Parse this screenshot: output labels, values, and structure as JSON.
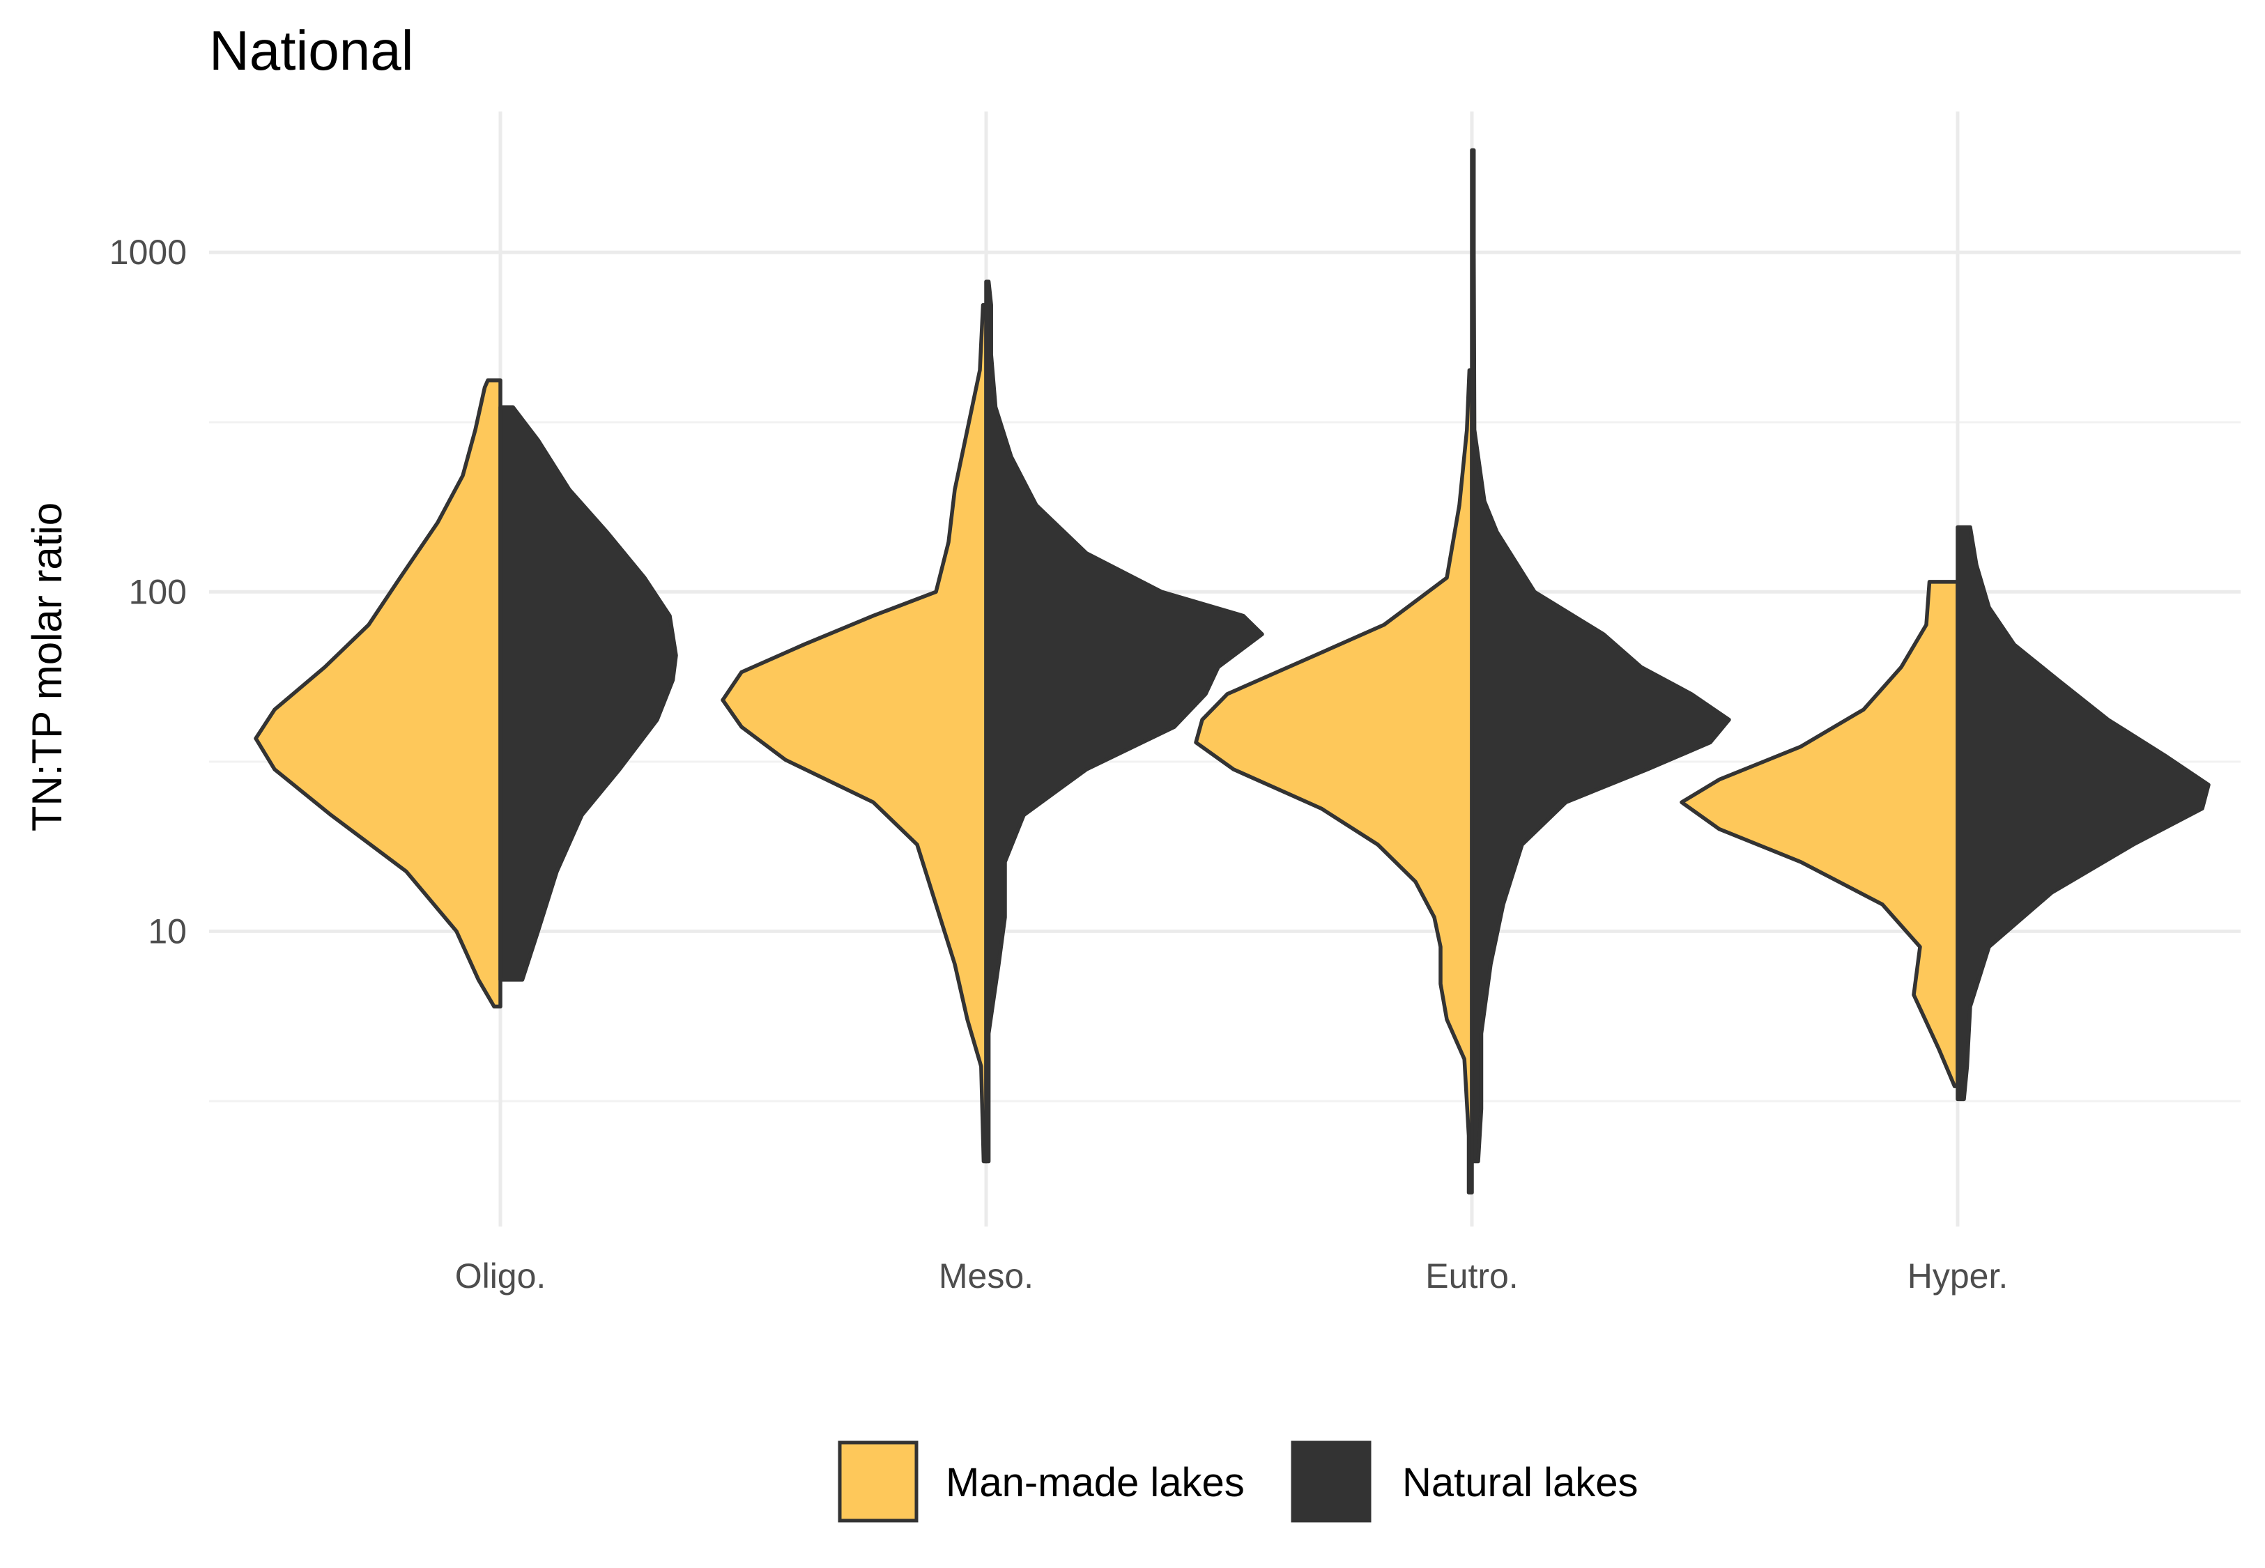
{
  "chart_data": {
    "type": "split-violin",
    "title": "National",
    "ylabel": "TN:TP molar ratio",
    "xlabel": "",
    "y_scale": "log10",
    "ylim": [
      1.35,
      2600
    ],
    "y_ticks": [
      10,
      100,
      1000
    ],
    "y_tick_labels": [
      "10",
      "100",
      "1000"
    ],
    "y_minor_ticks": [
      3.16,
      31.6,
      316
    ],
    "categories": [
      "Oligo.",
      "Meso.",
      "Eutro.",
      "Hyper."
    ],
    "grid": true,
    "legend_position": "bottom",
    "colors": {
      "man_made": "#FEC85A",
      "natural": "#333333",
      "outline": "#333333"
    },
    "series": [
      {
        "name": "Man-made lakes",
        "side": "left",
        "color": "#FEC85A",
        "violins": [
          {
            "category": "Oligo.",
            "ymin": 6.0,
            "ymax": 420,
            "profile": [
              [
                6.0,
                0.01
              ],
              [
                7.2,
                0.035
              ],
              [
                10,
                0.07
              ],
              [
                15,
                0.15
              ],
              [
                22,
                0.27
              ],
              [
                30,
                0.36
              ],
              [
                37,
                0.39
              ],
              [
                45,
                0.36
              ],
              [
                60,
                0.28
              ],
              [
                80,
                0.21
              ],
              [
                110,
                0.16
              ],
              [
                160,
                0.1
              ],
              [
                220,
                0.06
              ],
              [
                300,
                0.04
              ],
              [
                400,
                0.025
              ],
              [
                420,
                0.02
              ]
            ]
          },
          {
            "category": "Meso.",
            "ymin": 2.1,
            "ymax": 700,
            "profile": [
              [
                2.1,
                0.004
              ],
              [
                4,
                0.008
              ],
              [
                5.5,
                0.03
              ],
              [
                8,
                0.05
              ],
              [
                12,
                0.08
              ],
              [
                18,
                0.11
              ],
              [
                24,
                0.18
              ],
              [
                32,
                0.32
              ],
              [
                40,
                0.39
              ],
              [
                48,
                0.42
              ],
              [
                58,
                0.39
              ],
              [
                70,
                0.29
              ],
              [
                85,
                0.18
              ],
              [
                100,
                0.08
              ],
              [
                140,
                0.06
              ],
              [
                200,
                0.05
              ],
              [
                300,
                0.03
              ],
              [
                450,
                0.01
              ],
              [
                700,
                0.005
              ]
            ]
          },
          {
            "category": "Eutro.",
            "ymin": 1.7,
            "ymax": 450,
            "profile": [
              [
                1.7,
                0.005
              ],
              [
                2.5,
                0.005
              ],
              [
                4.2,
                0.012
              ],
              [
                5.5,
                0.04
              ],
              [
                7,
                0.05
              ],
              [
                9,
                0.05
              ],
              [
                11,
                0.06
              ],
              [
                14,
                0.09
              ],
              [
                18,
                0.15
              ],
              [
                23,
                0.24
              ],
              [
                30,
                0.38
              ],
              [
                36,
                0.44
              ],
              [
                42,
                0.43
              ],
              [
                50,
                0.39
              ],
              [
                65,
                0.25
              ],
              [
                80,
                0.14
              ],
              [
                110,
                0.04
              ],
              [
                180,
                0.02
              ],
              [
                300,
                0.008
              ],
              [
                450,
                0.004
              ]
            ]
          },
          {
            "category": "Hyper.",
            "ymin": 3.5,
            "ymax": 107,
            "profile": [
              [
                3.5,
                0.005
              ],
              [
                4.5,
                0.03
              ],
              [
                6.5,
                0.07
              ],
              [
                9,
                0.06
              ],
              [
                12,
                0.12
              ],
              [
                16,
                0.25
              ],
              [
                20,
                0.38
              ],
              [
                24,
                0.44
              ],
              [
                28,
                0.38
              ],
              [
                35,
                0.25
              ],
              [
                45,
                0.15
              ],
              [
                60,
                0.09
              ],
              [
                80,
                0.05
              ],
              [
                107,
                0.045
              ]
            ]
          }
        ]
      },
      {
        "name": "Natural lakes",
        "side": "right",
        "color": "#333333",
        "violins": [
          {
            "category": "Oligo.",
            "ymin": 7.2,
            "ymax": 350,
            "profile": [
              [
                7.2,
                0.035
              ],
              [
                10,
                0.06
              ],
              [
                15,
                0.09
              ],
              [
                22,
                0.13
              ],
              [
                30,
                0.19
              ],
              [
                42,
                0.25
              ],
              [
                55,
                0.275
              ],
              [
                65,
                0.28
              ],
              [
                85,
                0.27
              ],
              [
                110,
                0.23
              ],
              [
                150,
                0.17
              ],
              [
                200,
                0.11
              ],
              [
                280,
                0.06
              ],
              [
                350,
                0.02
              ]
            ]
          },
          {
            "category": "Meso.",
            "ymin": 2.1,
            "ymax": 820,
            "profile": [
              [
                2.1,
                0.004
              ],
              [
                5,
                0.004
              ],
              [
                8,
                0.02
              ],
              [
                11,
                0.03
              ],
              [
                16,
                0.03
              ],
              [
                22,
                0.06
              ],
              [
                30,
                0.16
              ],
              [
                40,
                0.3
              ],
              [
                50,
                0.35
              ],
              [
                60,
                0.37
              ],
              [
                75,
                0.44
              ],
              [
                85,
                0.41
              ],
              [
                100,
                0.28
              ],
              [
                130,
                0.16
              ],
              [
                180,
                0.08
              ],
              [
                250,
                0.04
              ],
              [
                350,
                0.015
              ],
              [
                500,
                0.008
              ],
              [
                700,
                0.008
              ],
              [
                820,
                0.004
              ]
            ]
          },
          {
            "category": "Eutro.",
            "ymin": 2.1,
            "ymax": 2000,
            "profile": [
              [
                2.1,
                0.01
              ],
              [
                3,
                0.015
              ],
              [
                5,
                0.015
              ],
              [
                8,
                0.03
              ],
              [
                12,
                0.05
              ],
              [
                18,
                0.08
              ],
              [
                24,
                0.15
              ],
              [
                30,
                0.28
              ],
              [
                36,
                0.38
              ],
              [
                42,
                0.41
              ],
              [
                50,
                0.35
              ],
              [
                60,
                0.27
              ],
              [
                75,
                0.21
              ],
              [
                100,
                0.1
              ],
              [
                150,
                0.04
              ],
              [
                185,
                0.02
              ],
              [
                300,
                0.004
              ],
              [
                1000,
                0.003
              ],
              [
                2000,
                0.003
              ]
            ]
          },
          {
            "category": "Hyper.",
            "ymin": 3.2,
            "ymax": 155,
            "profile": [
              [
                3.2,
                0.01
              ],
              [
                4,
                0.015
              ],
              [
                6,
                0.02
              ],
              [
                9,
                0.05
              ],
              [
                13,
                0.15
              ],
              [
                18,
                0.28
              ],
              [
                23,
                0.39
              ],
              [
                27,
                0.4
              ],
              [
                33,
                0.33
              ],
              [
                42,
                0.24
              ],
              [
                55,
                0.16
              ],
              [
                70,
                0.09
              ],
              [
                90,
                0.05
              ],
              [
                120,
                0.03
              ],
              [
                155,
                0.02
              ]
            ]
          }
        ]
      }
    ],
    "legend": [
      {
        "label": "Man-made lakes",
        "color": "#FEC85A"
      },
      {
        "label": "Natural lakes",
        "color": "#333333"
      }
    ]
  }
}
